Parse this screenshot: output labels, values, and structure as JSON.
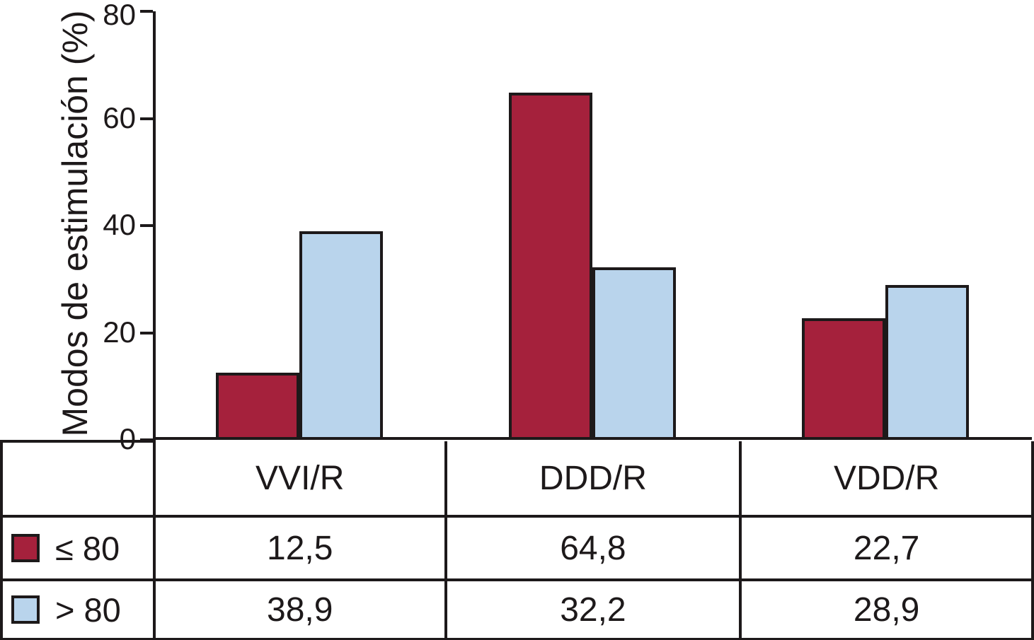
{
  "chart_data": {
    "type": "bar",
    "title": "",
    "ylabel": "Modos de estimulación (%)",
    "xlabel": "",
    "ylim": [
      0,
      80
    ],
    "yticks": [
      "0",
      "20",
      "40",
      "60",
      "80"
    ],
    "grid": false,
    "legend_position": "table-left-column",
    "categories": [
      "VVI/R",
      "DDD/R",
      "VDD/R"
    ],
    "series": [
      {
        "name": "≤ 80",
        "color": "#a5213c",
        "values": [
          12.5,
          64.8,
          22.7
        ],
        "labels": [
          "12,5",
          "64,8",
          "22,7"
        ]
      },
      {
        "name": "> 80",
        "color": "#b9d4ec",
        "values": [
          38.9,
          32.2,
          28.9
        ],
        "labels": [
          "38,9",
          "32,2",
          "28,9"
        ]
      }
    ]
  }
}
